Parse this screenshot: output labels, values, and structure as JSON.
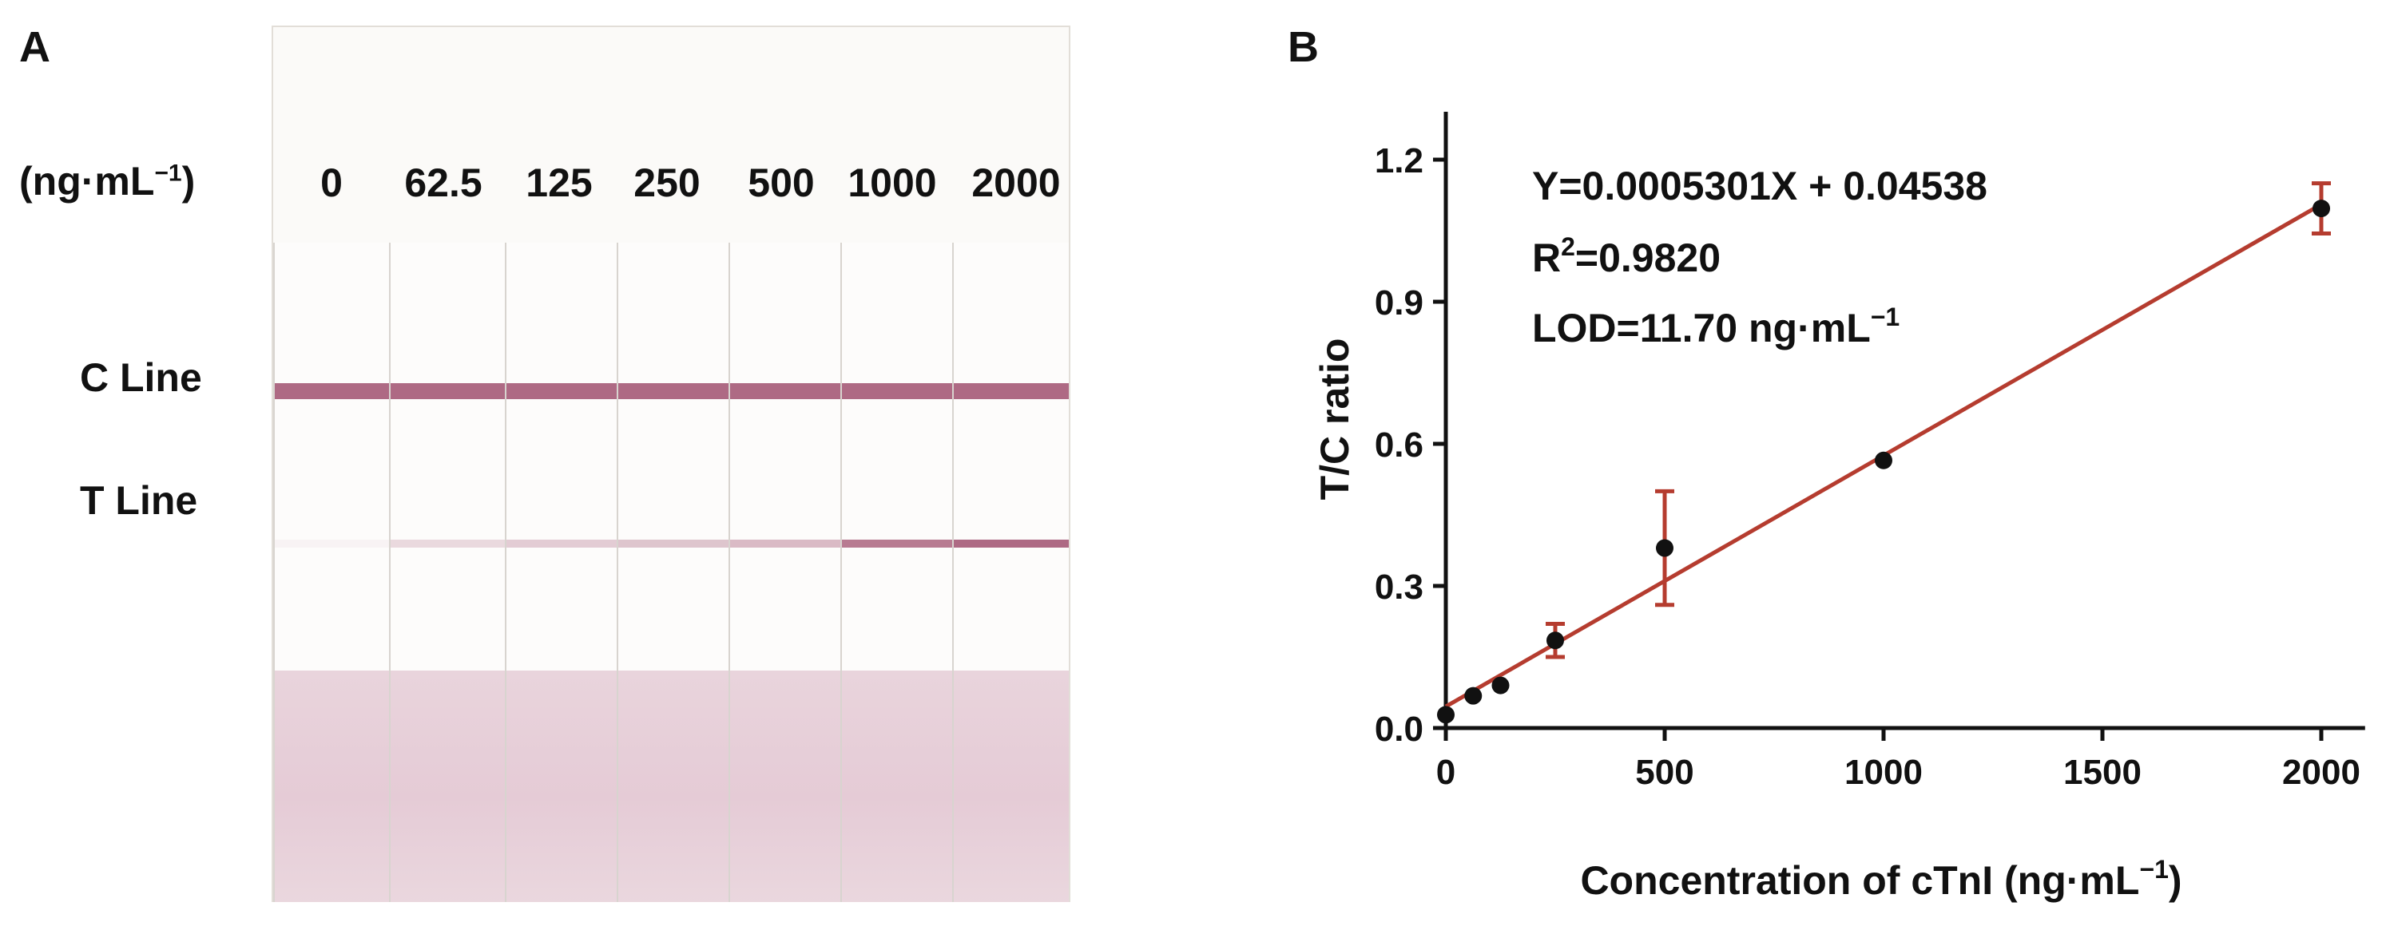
{
  "panel_a": {
    "label": "A",
    "unit_text": "(ng·mL",
    "unit_exp": "−1",
    "unit_close": ")",
    "concentrations": [
      "0",
      "62.5",
      "125",
      "250",
      "500",
      "1000",
      "2000"
    ],
    "c_line_label": "C Line",
    "t_line_label": "T Line",
    "c_line_color": "#a0506e",
    "t_line_intensity": [
      0.05,
      0.2,
      0.28,
      0.32,
      0.38,
      0.75,
      0.85
    ],
    "pad_color": "#e6cdd7"
  },
  "panel_b": {
    "label": "B",
    "equation": "Y=0.0005301X + 0.04538",
    "r2_prefix": "R",
    "r2_sup": "2",
    "r2_value": "=0.9820",
    "lod_text": "LOD=11.70 ng·mL",
    "lod_sup": "−1",
    "fit_color": "#b53c2f",
    "point_color": "#111111"
  },
  "chart_data": {
    "type": "scatter",
    "title": "",
    "xlabel": "Concentration of cTnI (ng·mL",
    "xlabel_sup": "−1",
    "xlabel_close": ")",
    "ylabel": "T/C ratio",
    "xlim": [
      0,
      2100
    ],
    "ylim": [
      0,
      1.3
    ],
    "xticks": [
      0,
      500,
      1000,
      1500,
      2000
    ],
    "xtick_labels": [
      "0",
      "500",
      "1000",
      "1500",
      "2000"
    ],
    "yticks": [
      0.0,
      0.3,
      0.6,
      0.9,
      1.2
    ],
    "ytick_labels": [
      "0.0",
      "0.3",
      "0.6",
      "0.9",
      "1.2"
    ],
    "points": [
      {
        "x": 0,
        "y": 0.028,
        "err": 0.0
      },
      {
        "x": 62.5,
        "y": 0.068,
        "err": 0.0
      },
      {
        "x": 125,
        "y": 0.09,
        "err": 0.0
      },
      {
        "x": 250,
        "y": 0.185,
        "err": 0.035
      },
      {
        "x": 500,
        "y": 0.38,
        "err": 0.12
      },
      {
        "x": 1000,
        "y": 0.565,
        "err": 0.0
      },
      {
        "x": 2000,
        "y": 1.097,
        "err": 0.053
      }
    ],
    "fit": {
      "slope": 0.0005301,
      "intercept": 0.04538,
      "x_range": [
        0,
        2000
      ]
    }
  }
}
